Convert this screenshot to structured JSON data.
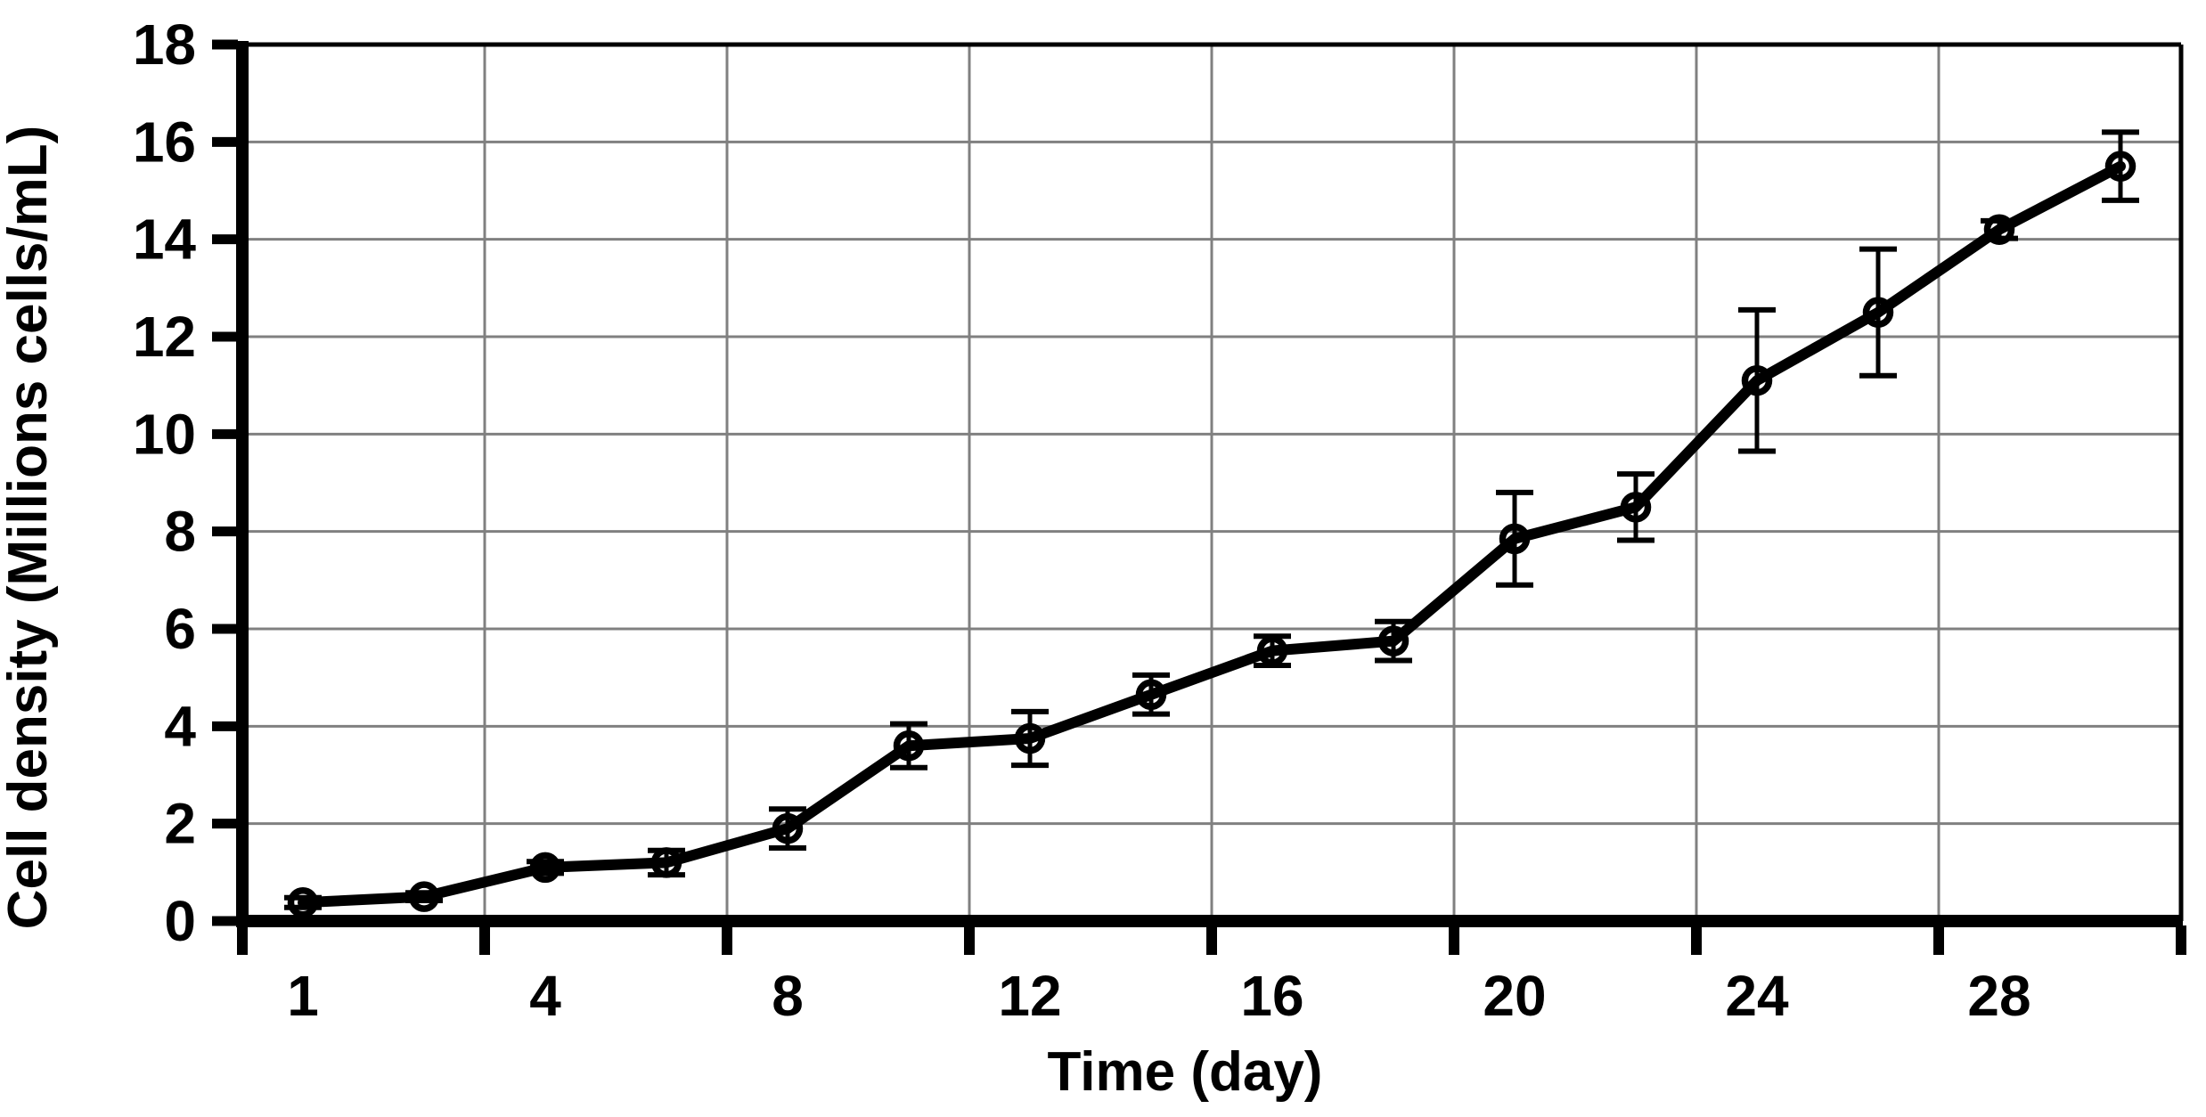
{
  "chart_data": {
    "type": "line",
    "title": "",
    "xlabel": "Time (day)",
    "ylabel": "Cell density (Millions cells/mL)",
    "x_tick_labels": [
      "1",
      "4",
      "8",
      "12",
      "16",
      "20",
      "24",
      "28"
    ],
    "y_ticks": [
      0,
      2,
      4,
      6,
      8,
      10,
      12,
      14,
      16,
      18
    ],
    "ylim": [
      0,
      18
    ],
    "grid": true,
    "legend_position": "none",
    "gridline_color": "#808080",
    "axis_color": "#000000",
    "marker_style": "open-circle",
    "series": [
      {
        "name": "Cell density",
        "color": "#000000",
        "x": [
          1,
          2,
          4,
          6,
          8,
          10,
          12,
          14,
          16,
          18,
          20,
          22,
          24,
          26,
          28,
          30
        ],
        "y": [
          0.38,
          0.5,
          1.1,
          1.2,
          1.9,
          3.6,
          3.75,
          4.65,
          5.55,
          5.75,
          7.85,
          8.5,
          11.1,
          12.5,
          14.2,
          15.5
        ],
        "yerr": [
          0.1,
          0.08,
          0.12,
          0.25,
          0.4,
          0.45,
          0.55,
          0.4,
          0.3,
          0.4,
          0.95,
          0.68,
          1.45,
          1.3,
          0.18,
          0.7
        ]
      }
    ]
  }
}
